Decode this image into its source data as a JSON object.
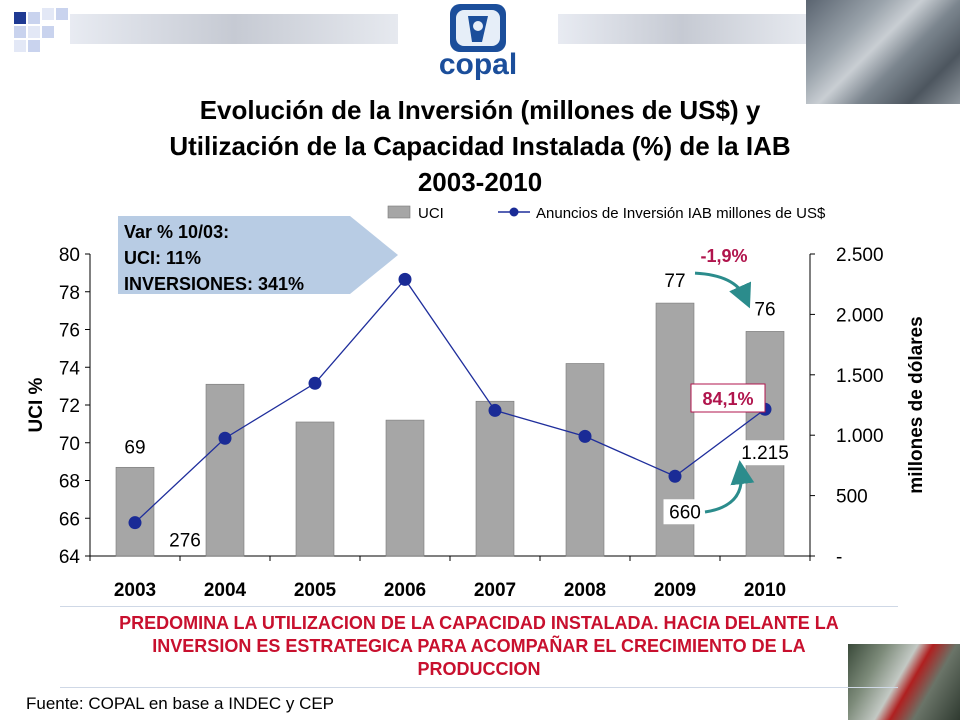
{
  "header": {
    "logo_text": "copal"
  },
  "title": {
    "line1": "Evolución de la Inversión (millones de US$) y",
    "line2": "Utilización de la Capacidad Instalada (%) de la IAB",
    "line3": "2003-2010"
  },
  "callout": {
    "line1": "Var % 10/03:",
    "line2": "UCI: 11%",
    "line3": "INVERSIONES:  341%"
  },
  "footer": {
    "message_line1": "PREDOMINA LA UTILIZACION DE LA CAPACIDAD INSTALADA. HACIA DELANTE LA",
    "message_line2": "INVERSION ES ESTRATEGICA PARA ACOMPAÑAR EL CRECIMIENTO DE LA",
    "message_line3": "PRODUCCION",
    "source": "Fuente: COPAL en base a INDEC y CEP"
  },
  "colors": {
    "bar": "#a6a6a6",
    "line": "#1f2e9c",
    "marker": "#1a2b96",
    "annotation_red": "#b0144c",
    "arrow_teal": "#2b8c8c",
    "callout_fill": "#b8cce4",
    "message": "#c8102e"
  },
  "chart_data": {
    "type": "bar",
    "categories": [
      "2003",
      "2004",
      "2005",
      "2006",
      "2007",
      "2008",
      "2009",
      "2010"
    ],
    "series": [
      {
        "name": "UCI",
        "type": "bar",
        "axis": "left",
        "values": [
          68.7,
          73.1,
          71.1,
          71.2,
          72.2,
          74.2,
          77.4,
          75.9
        ]
      },
      {
        "name": "Anuncios de Inversión IAB millones de US$",
        "type": "line",
        "axis": "right",
        "values": [
          276,
          975,
          1430,
          2290,
          1205,
          990,
          660,
          1215
        ]
      }
    ],
    "y_left": {
      "label": "UCI %",
      "min": 64,
      "max": 80,
      "ticks": [
        "64",
        "66",
        "68",
        "70",
        "72",
        "74",
        "76",
        "78",
        "80"
      ]
    },
    "y_right": {
      "label": "millones de dólares",
      "min": 0,
      "max": 2500,
      "ticks": [
        "-",
        "500",
        "1.000",
        "1.500",
        "2.000",
        "2.500"
      ]
    },
    "legend": {
      "position": "top",
      "entries": [
        "UCI",
        "Anuncios de Inversión IAB millones de US$"
      ]
    },
    "data_labels": [
      {
        "text": "69",
        "series": "UCI",
        "category": "2003"
      },
      {
        "text": "276",
        "series": "Anuncios de Inversión IAB millones de US$",
        "category": "2003"
      },
      {
        "text": "77",
        "series": "UCI",
        "category": "2009"
      },
      {
        "text": "76",
        "series": "UCI",
        "category": "2010"
      },
      {
        "text": "660",
        "series": "Anuncios de Inversión IAB millones de US$",
        "category": "2009"
      },
      {
        "text": "1.215",
        "series": "Anuncios de Inversión IAB millones de US$",
        "category": "2010"
      }
    ],
    "annotations": [
      {
        "text": "-1,9%",
        "from": "2009",
        "to": "2010",
        "series": "UCI"
      },
      {
        "text": "84,1%",
        "from": "2009",
        "to": "2010",
        "series": "Anuncios de Inversión IAB millones de US$"
      }
    ],
    "grid": false
  }
}
